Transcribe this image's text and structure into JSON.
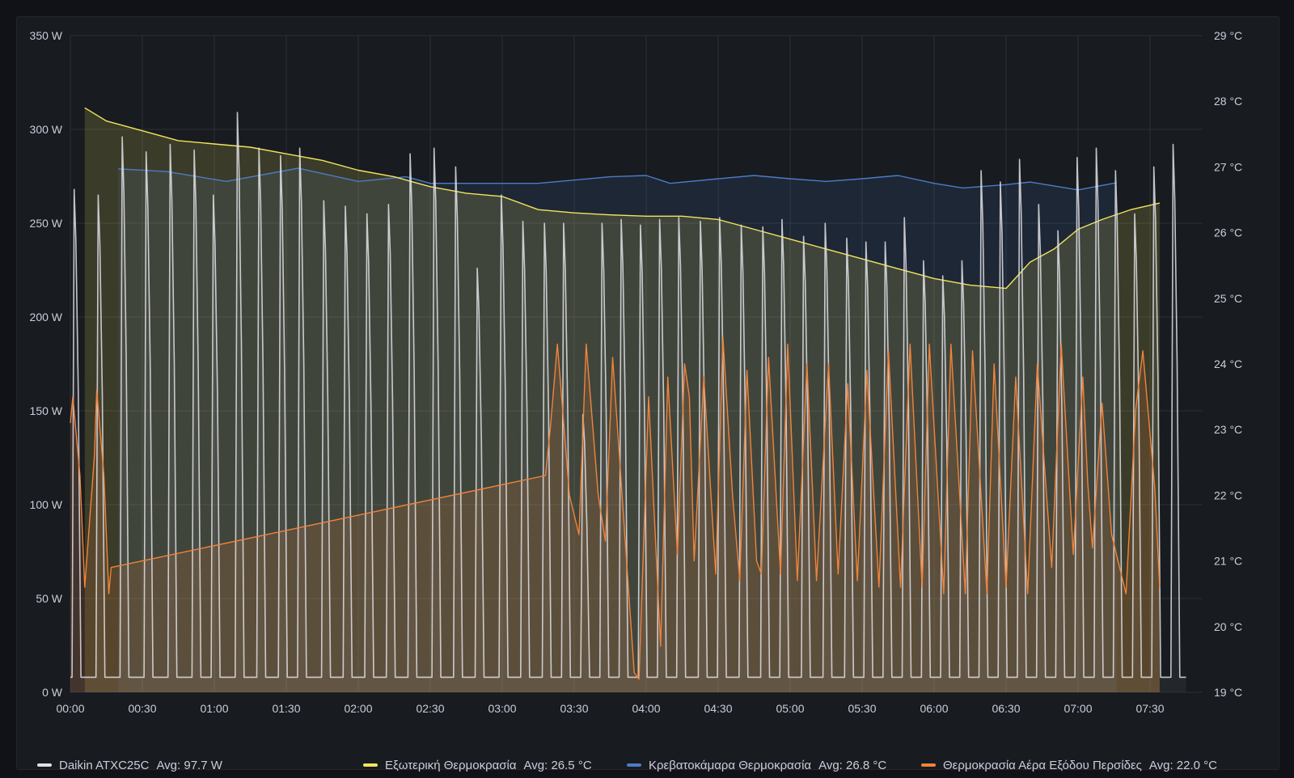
{
  "chart_data": {
    "type": "line",
    "title": "",
    "x_ticks": [
      "00:00",
      "00:30",
      "01:00",
      "01:30",
      "02:00",
      "02:30",
      "03:00",
      "03:30",
      "04:00",
      "04:30",
      "05:00",
      "05:30",
      "06:00",
      "06:30",
      "07:00",
      "07:30"
    ],
    "y_left": {
      "unit": "W",
      "range": [
        0,
        350
      ],
      "ticks": [
        "0 W",
        "50 W",
        "100 W",
        "150 W",
        "200 W",
        "250 W",
        "300 W",
        "350 W"
      ]
    },
    "y_right": {
      "unit": "°C",
      "range": [
        19,
        29
      ],
      "ticks": [
        "19 °C",
        "20 °C",
        "21 °C",
        "22 °C",
        "23 °C",
        "24 °C",
        "25 °C",
        "26 °C",
        "27 °C",
        "28 °C",
        "29 °C"
      ]
    },
    "grid": true,
    "legend_position": "bottom",
    "series": [
      {
        "name": "Daikin ATXC25C",
        "avg_label": "Avg: 97.7 W",
        "color": "#e0e0e6",
        "axis": "left",
        "kind": "power-cycles",
        "base": 8,
        "peaks": [
          {
            "t": 2,
            "v": 268
          },
          {
            "t": 12,
            "v": 265
          },
          {
            "t": 22,
            "v": 296
          },
          {
            "t": 32,
            "v": 288
          },
          {
            "t": 42,
            "v": 292
          },
          {
            "t": 52,
            "v": 289
          },
          {
            "t": 60,
            "v": 265
          },
          {
            "t": 70,
            "v": 309
          },
          {
            "t": 79,
            "v": 290
          },
          {
            "t": 88,
            "v": 286
          },
          {
            "t": 96,
            "v": 290
          },
          {
            "t": 106,
            "v": 262
          },
          {
            "t": 115,
            "v": 259
          },
          {
            "t": 124,
            "v": 255
          },
          {
            "t": 133,
            "v": 260
          },
          {
            "t": 142,
            "v": 287
          },
          {
            "t": 152,
            "v": 290
          },
          {
            "t": 161,
            "v": 280
          },
          {
            "t": 170,
            "v": 226
          },
          {
            "t": 180,
            "v": 265
          },
          {
            "t": 189,
            "v": 251
          },
          {
            "t": 198,
            "v": 250
          },
          {
            "t": 206,
            "v": 250
          },
          {
            "t": 214,
            "v": 148
          },
          {
            "t": 222,
            "v": 250
          },
          {
            "t": 230,
            "v": 252
          },
          {
            "t": 238,
            "v": 249
          },
          {
            "t": 246,
            "v": 252
          },
          {
            "t": 254,
            "v": 253
          },
          {
            "t": 263,
            "v": 251
          },
          {
            "t": 271,
            "v": 253
          },
          {
            "t": 280,
            "v": 249
          },
          {
            "t": 289,
            "v": 248
          },
          {
            "t": 297,
            "v": 252
          },
          {
            "t": 306,
            "v": 243
          },
          {
            "t": 315,
            "v": 250
          },
          {
            "t": 324,
            "v": 242
          },
          {
            "t": 332,
            "v": 240
          },
          {
            "t": 340,
            "v": 240
          },
          {
            "t": 348,
            "v": 253
          },
          {
            "t": 356,
            "v": 230
          },
          {
            "t": 364,
            "v": 222
          },
          {
            "t": 372,
            "v": 230
          },
          {
            "t": 380,
            "v": 278
          },
          {
            "t": 388,
            "v": 272
          },
          {
            "t": 396,
            "v": 284
          },
          {
            "t": 404,
            "v": 260
          },
          {
            "t": 412,
            "v": 246
          },
          {
            "t": 420,
            "v": 285
          },
          {
            "t": 428,
            "v": 290
          },
          {
            "t": 436,
            "v": 278
          },
          {
            "t": 444,
            "v": 255
          },
          {
            "t": 452,
            "v": 280
          },
          {
            "t": 460,
            "v": 292
          }
        ]
      },
      {
        "name": "Εξωτερική Θερμοκρασία",
        "avg_label": "Avg: 26.5 °C",
        "color": "#f2e55c",
        "axis": "right",
        "points": [
          [
            6,
            27.9
          ],
          [
            15,
            27.7
          ],
          [
            30,
            27.55
          ],
          [
            45,
            27.4
          ],
          [
            60,
            27.35
          ],
          [
            75,
            27.3
          ],
          [
            90,
            27.2
          ],
          [
            105,
            27.1
          ],
          [
            120,
            26.95
          ],
          [
            135,
            26.85
          ],
          [
            150,
            26.7
          ],
          [
            165,
            26.6
          ],
          [
            180,
            26.55
          ],
          [
            195,
            26.35
          ],
          [
            210,
            26.3
          ],
          [
            225,
            26.27
          ],
          [
            240,
            26.25
          ],
          [
            255,
            26.25
          ],
          [
            270,
            26.2
          ],
          [
            285,
            26.05
          ],
          [
            300,
            25.9
          ],
          [
            315,
            25.75
          ],
          [
            330,
            25.6
          ],
          [
            345,
            25.45
          ],
          [
            360,
            25.3
          ],
          [
            375,
            25.2
          ],
          [
            390,
            25.15
          ],
          [
            400,
            25.55
          ],
          [
            410,
            25.75
          ],
          [
            420,
            26.05
          ],
          [
            430,
            26.2
          ],
          [
            442,
            26.35
          ],
          [
            454,
            26.45
          ]
        ]
      },
      {
        "name": "Κρεβατοκάμαρα Θερμοκρασία",
        "avg_label": "Avg: 26.8 °C",
        "color": "#4b7cc7",
        "axis": "right",
        "points": [
          [
            20,
            26.97
          ],
          [
            40,
            26.93
          ],
          [
            65,
            26.78
          ],
          [
            95,
            26.98
          ],
          [
            120,
            26.78
          ],
          [
            140,
            26.85
          ],
          [
            150,
            26.75
          ],
          [
            195,
            26.75
          ],
          [
            225,
            26.85
          ],
          [
            240,
            26.87
          ],
          [
            250,
            26.75
          ],
          [
            270,
            26.82
          ],
          [
            285,
            26.87
          ],
          [
            300,
            26.82
          ],
          [
            315,
            26.78
          ],
          [
            330,
            26.82
          ],
          [
            345,
            26.87
          ],
          [
            360,
            26.75
          ],
          [
            372,
            26.68
          ],
          [
            390,
            26.73
          ],
          [
            400,
            26.77
          ],
          [
            420,
            26.65
          ],
          [
            436,
            26.76
          ]
        ]
      },
      {
        "name": "Θερμοκρασία Αέρα Εξόδου Περσίδες",
        "avg_label": "Avg: 22.0 °C",
        "color": "#ef843c",
        "axis": "right",
        "points": [
          [
            0,
            23.1
          ],
          [
            1,
            23.5
          ],
          [
            4,
            22.3
          ],
          [
            6,
            20.6
          ],
          [
            10,
            22.6
          ],
          [
            11,
            23.6
          ],
          [
            14,
            22.3
          ],
          [
            16,
            20.5
          ],
          [
            17,
            20.9
          ],
          [
            198,
            22.3
          ],
          [
            200,
            23.0
          ],
          [
            203,
            24.3
          ],
          [
            208,
            22.0
          ],
          [
            212,
            21.4
          ],
          [
            215,
            24.3
          ],
          [
            220,
            22.0
          ],
          [
            223,
            21.3
          ],
          [
            226,
            24.1
          ],
          [
            235,
            19.3
          ],
          [
            237,
            19.2
          ],
          [
            241,
            23.5
          ],
          [
            246,
            19.7
          ],
          [
            249,
            23.8
          ],
          [
            253,
            21.1
          ],
          [
            256,
            24.0
          ],
          [
            258,
            23.5
          ],
          [
            260,
            21.0
          ],
          [
            264,
            23.8
          ],
          [
            267,
            22.0
          ],
          [
            269,
            20.8
          ],
          [
            272,
            24.4
          ],
          [
            276,
            22.0
          ],
          [
            279,
            20.7
          ],
          [
            282,
            23.9
          ],
          [
            286,
            21.0
          ],
          [
            288,
            20.8
          ],
          [
            291,
            24.1
          ],
          [
            296,
            20.8
          ],
          [
            299,
            24.3
          ],
          [
            303,
            20.7
          ],
          [
            307,
            24.0
          ],
          [
            311,
            20.7
          ],
          [
            316,
            24.0
          ],
          [
            320,
            20.8
          ],
          [
            324,
            23.7
          ],
          [
            328,
            20.7
          ],
          [
            332,
            23.9
          ],
          [
            337,
            20.6
          ],
          [
            341,
            24.2
          ],
          [
            346,
            20.6
          ],
          [
            350,
            24.3
          ],
          [
            355,
            20.6
          ],
          [
            358,
            24.3
          ],
          [
            364,
            20.5
          ],
          [
            367,
            24.3
          ],
          [
            373,
            20.5
          ],
          [
            376,
            24.2
          ],
          [
            382,
            20.5
          ],
          [
            385,
            24.0
          ],
          [
            390,
            20.6
          ],
          [
            394,
            23.8
          ],
          [
            399,
            20.5
          ],
          [
            403,
            24.0
          ],
          [
            409,
            20.9
          ],
          [
            413,
            24.3
          ],
          [
            418,
            21.1
          ],
          [
            422,
            23.8
          ],
          [
            424,
            22.2
          ],
          [
            426,
            21.2
          ],
          [
            430,
            23.4
          ],
          [
            434,
            21.4
          ],
          [
            440,
            20.5
          ],
          [
            444,
            23.3
          ],
          [
            447,
            24.2
          ],
          [
            452,
            22.1
          ],
          [
            454,
            20.6
          ]
        ]
      }
    ]
  }
}
